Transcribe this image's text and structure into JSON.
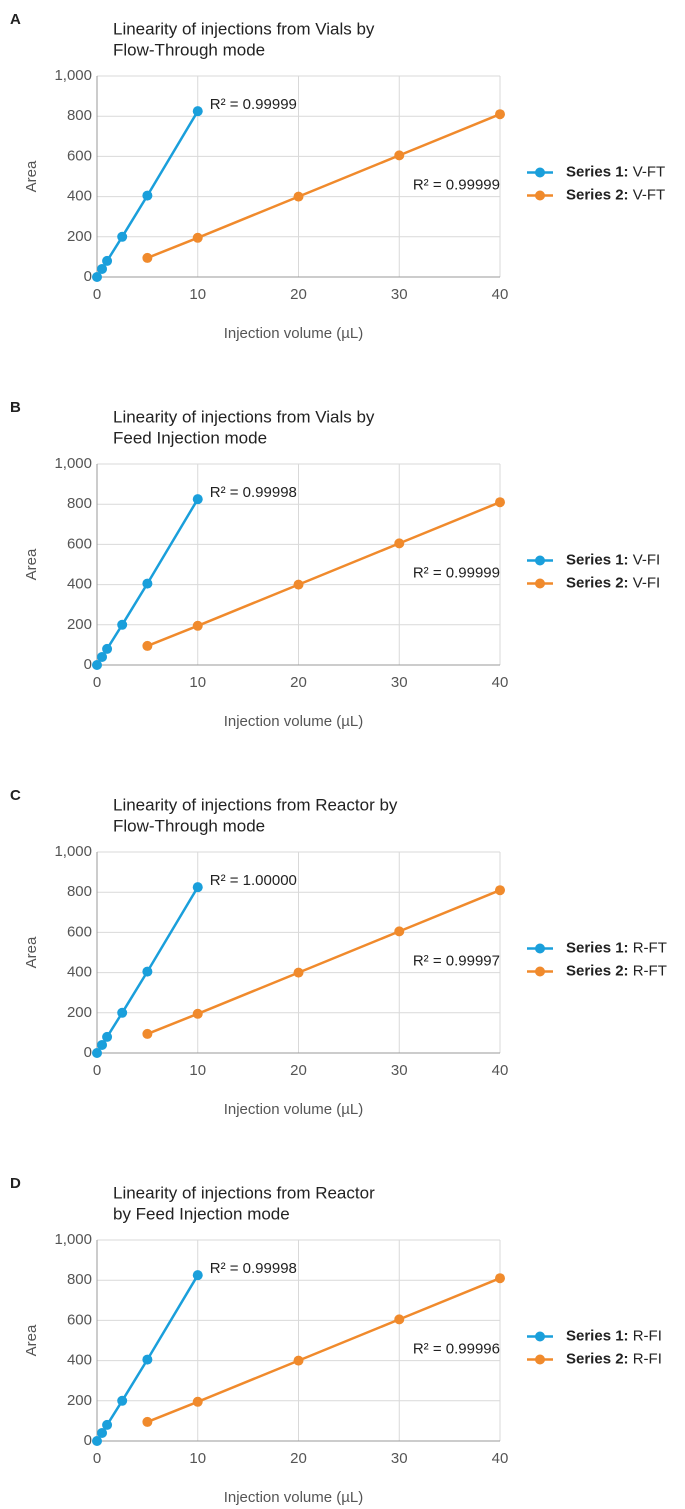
{
  "chart_data": [
    {
      "type": "line",
      "panel": "A",
      "title": [
        "Linearity of injections from Vials by",
        "Flow-Through mode"
      ],
      "xlabel": "Injection volume (µL)",
      "ylabel": "Area",
      "xlim": [
        0,
        40
      ],
      "xticks": [
        0,
        10,
        20,
        30,
        40
      ],
      "ylim": [
        0,
        1000
      ],
      "yticks": [
        0,
        200,
        400,
        600,
        800,
        {
          "value": 1000,
          "label": "1,000"
        }
      ],
      "grid": true,
      "legend": "right",
      "series": [
        {
          "name": "Series 1: V-FT",
          "color": "#1a9fdb",
          "x": [
            0,
            0.5,
            1,
            2.5,
            5,
            10
          ],
          "values": [
            0,
            40,
            80,
            200,
            405,
            825
          ],
          "label": "R² = 0.99999"
        },
        {
          "name": "Series 2: V-FT",
          "color": "#f08a2c",
          "x": [
            5,
            10,
            20,
            30,
            40
          ],
          "values": [
            95,
            195,
            400,
            605,
            810
          ],
          "label": "R² = 0.99999"
        }
      ]
    },
    {
      "type": "line",
      "panel": "B",
      "title": [
        "Linearity of injections from Vials by",
        "Feed Injection mode"
      ],
      "xlabel": "Injection volume (µL)",
      "ylabel": "Area",
      "xlim": [
        0,
        40
      ],
      "xticks": [
        0,
        10,
        20,
        30,
        40
      ],
      "ylim": [
        0,
        1000
      ],
      "yticks": [
        0,
        200,
        400,
        600,
        800,
        {
          "value": 1000,
          "label": "1,000"
        }
      ],
      "grid": true,
      "legend": "right",
      "series": [
        {
          "name": "Series 1: V-FI",
          "color": "#1a9fdb",
          "x": [
            0,
            0.5,
            1,
            2.5,
            5,
            10
          ],
          "values": [
            0,
            40,
            80,
            200,
            405,
            825
          ],
          "label": "R² = 0.99998"
        },
        {
          "name": "Series 2: V-FI",
          "color": "#f08a2c",
          "x": [
            5,
            10,
            20,
            30,
            40
          ],
          "values": [
            95,
            195,
            400,
            605,
            810
          ],
          "label": "R² = 0.99999"
        }
      ]
    },
    {
      "type": "line",
      "panel": "C",
      "title": [
        "Linearity of injections from Reactor by",
        "Flow-Through mode"
      ],
      "xlabel": "Injection volume (µL)",
      "ylabel": "Area",
      "xlim": [
        0,
        40
      ],
      "xticks": [
        0,
        10,
        20,
        30,
        40
      ],
      "ylim": [
        0,
        1000
      ],
      "yticks": [
        0,
        200,
        400,
        600,
        800,
        {
          "value": 1000,
          "label": "1,000"
        }
      ],
      "grid": true,
      "legend": "right",
      "series": [
        {
          "name": "Series 1: R-FT",
          "color": "#1a9fdb",
          "x": [
            0,
            0.5,
            1,
            2.5,
            5,
            10
          ],
          "values": [
            0,
            40,
            80,
            200,
            405,
            825
          ],
          "label": "R² = 1.00000"
        },
        {
          "name": "Series 2: R-FT",
          "color": "#f08a2c",
          "x": [
            5,
            10,
            20,
            30,
            40
          ],
          "values": [
            95,
            195,
            400,
            605,
            810
          ],
          "label": "R² = 0.99997"
        }
      ]
    },
    {
      "type": "line",
      "panel": "D",
      "title": [
        "Linearity of injections from Reactor",
        "by Feed Injection mode"
      ],
      "xlabel": "Injection volume (µL)",
      "ylabel": "Area",
      "xlim": [
        0,
        40
      ],
      "xticks": [
        0,
        10,
        20,
        30,
        40
      ],
      "ylim": [
        0,
        1000
      ],
      "yticks": [
        0,
        200,
        400,
        600,
        800,
        {
          "value": 1000,
          "label": "1,000"
        }
      ],
      "grid": true,
      "legend": "right",
      "series": [
        {
          "name": "Series 1: R-FI",
          "color": "#1a9fdb",
          "x": [
            0,
            0.5,
            1,
            2.5,
            5,
            10
          ],
          "values": [
            0,
            40,
            80,
            200,
            405,
            825
          ],
          "label": "R² = 0.99998"
        },
        {
          "name": "Series 2: R-FI",
          "color": "#f08a2c",
          "x": [
            5,
            10,
            20,
            30,
            40
          ],
          "values": [
            95,
            195,
            400,
            605,
            810
          ],
          "label": "R² = 0.99996"
        }
      ]
    }
  ]
}
